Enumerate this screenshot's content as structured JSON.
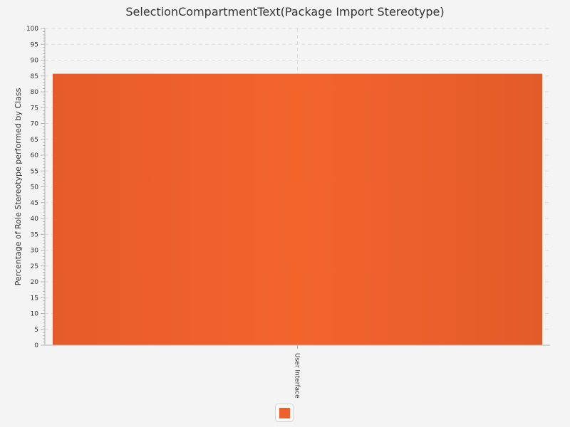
{
  "chart_data": {
    "type": "bar",
    "title": "SelectionCompartmentText(Package Import Stereotype)",
    "xlabel": "",
    "ylabel": "Percentage of Role Stereotype performed by Class",
    "categories": [
      "User Interface"
    ],
    "series": [
      {
        "values": [
          85.7
        ],
        "color": "#f0602a"
      }
    ],
    "ylim": [
      0,
      100
    ],
    "yticks": [
      0,
      5,
      10,
      15,
      20,
      25,
      30,
      35,
      40,
      45,
      50,
      55,
      60,
      65,
      70,
      75,
      80,
      85,
      90,
      95,
      100
    ],
    "grid": true,
    "legend_position": "bottom-center"
  }
}
